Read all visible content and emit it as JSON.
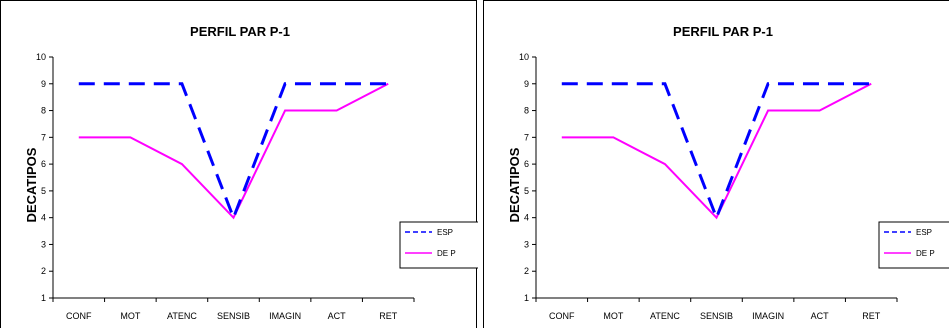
{
  "chart_data": [
    {
      "type": "line",
      "title": "PERFIL PAR P-1",
      "ylabel": "DECATIPOS",
      "xlabel": "",
      "categories": [
        "CONF",
        "MOT",
        "ATENC",
        "SENSIB",
        "IMAGIN",
        "ACT",
        "RET"
      ],
      "ylim": [
        1,
        10
      ],
      "yticks": [
        "1",
        "2",
        "3",
        "4",
        "5",
        "6",
        "7",
        "8",
        "9",
        "10"
      ],
      "grid": false,
      "legend": "right",
      "series": [
        {
          "name": "ESP",
          "values": [
            9,
            9,
            9,
            4,
            9,
            9,
            9
          ],
          "color": "#0000ff",
          "style": "dashed"
        },
        {
          "name": "DE P",
          "values": [
            7,
            7,
            6,
            4,
            8,
            8,
            9
          ],
          "color": "#ff00ff",
          "style": "solid"
        }
      ]
    },
    {
      "type": "line",
      "title": "PERFIL PAR P-1",
      "ylabel": "DECATIPOS",
      "xlabel": "",
      "categories": [
        "CONF",
        "MOT",
        "ATENC",
        "SENSIB",
        "IMAGIN",
        "ACT",
        "RET"
      ],
      "ylim": [
        1,
        10
      ],
      "yticks": [
        "1",
        "2",
        "3",
        "4",
        "5",
        "6",
        "7",
        "8",
        "9",
        "10"
      ],
      "grid": false,
      "legend": "right",
      "series": [
        {
          "name": "ESP",
          "values": [
            9,
            9,
            9,
            4,
            9,
            9,
            9
          ],
          "color": "#0000ff",
          "style": "dashed"
        },
        {
          "name": "DE P",
          "values": [
            7,
            7,
            6,
            4,
            8,
            8,
            9
          ],
          "color": "#ff00ff",
          "style": "solid"
        }
      ]
    }
  ]
}
